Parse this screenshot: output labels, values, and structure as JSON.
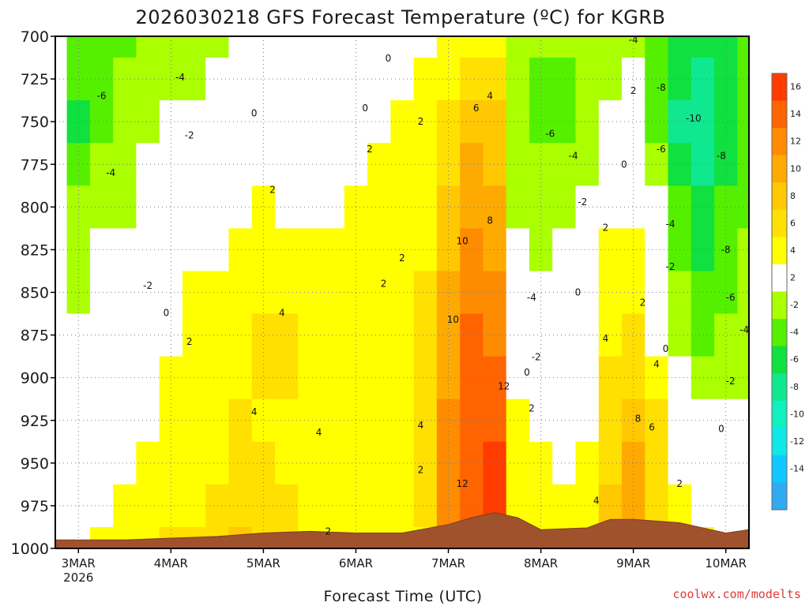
{
  "chart_data": {
    "type": "heatmap",
    "title": "2026030218 GFS Forecast Temperature (ºC) for KGRB",
    "xlabel": "Forecast Time (UTC)",
    "ylabel": "",
    "credit": "coolwx.com/modelts",
    "x_ticks": [
      {
        "label": "3MAR",
        "sub": "2026",
        "day": 3
      },
      {
        "label": "4MAR",
        "sub": "",
        "day": 4
      },
      {
        "label": "5MAR",
        "sub": "",
        "day": 5
      },
      {
        "label": "6MAR",
        "sub": "",
        "day": 6
      },
      {
        "label": "7MAR",
        "sub": "",
        "day": 7
      },
      {
        "label": "8MAR",
        "sub": "",
        "day": 8
      },
      {
        "label": "9MAR",
        "sub": "",
        "day": 9
      },
      {
        "label": "10MAR",
        "sub": "",
        "day": 10
      }
    ],
    "xlim": [
      2.75,
      10.25
    ],
    "y_ticks": [
      700,
      725,
      750,
      775,
      800,
      825,
      850,
      875,
      900,
      925,
      950,
      975,
      1000
    ],
    "ylim": [
      1000,
      700
    ],
    "colorbar": {
      "labels": [
        "16",
        "14",
        "12",
        "10",
        "8",
        "6",
        "4",
        "2",
        "-2",
        "-4",
        "-6",
        "-8",
        "-10",
        "-12",
        "-14"
      ],
      "colors": [
        "#ff3c00",
        "#ff6400",
        "#ff8c00",
        "#ffaa00",
        "#ffc800",
        "#ffe000",
        "#ffff00",
        "#ffffff",
        "#aaff00",
        "#55f000",
        "#10e040",
        "#10e890",
        "#10f0c0",
        "#10e8e8",
        "#10c8ff",
        "#30aaf0"
      ]
    },
    "temperature_field": [
      {
        "day": 3.0,
        "levels": [
          -5,
          -6,
          -7,
          -5,
          -4,
          -3,
          -3,
          -2,
          -1,
          -1,
          0,
          0,
          1
        ]
      },
      {
        "day": 3.25,
        "levels": [
          -5,
          -5,
          -5,
          -4,
          -3,
          -2,
          -2,
          -1,
          0,
          0,
          1,
          1,
          2
        ]
      },
      {
        "day": 3.5,
        "levels": [
          -5,
          -4,
          -4,
          -3,
          -3,
          -2,
          -1,
          0,
          0,
          1,
          1,
          2,
          3
        ]
      },
      {
        "day": 3.75,
        "levels": [
          -4,
          -4,
          -3,
          -2,
          -1,
          -1,
          0,
          0,
          1,
          1,
          2,
          3,
          3
        ]
      },
      {
        "day": 4.0,
        "levels": [
          -4,
          -3,
          -2,
          -1,
          0,
          0,
          1,
          1,
          2,
          2,
          3,
          3,
          4
        ]
      },
      {
        "day": 4.25,
        "levels": [
          -4,
          -3,
          -1,
          0,
          0,
          1,
          2,
          2,
          3,
          3,
          3,
          3,
          4
        ]
      },
      {
        "day": 4.5,
        "levels": [
          -3,
          -2,
          -1,
          0,
          1,
          1,
          2,
          3,
          3,
          3,
          3,
          4,
          4
        ]
      },
      {
        "day": 4.75,
        "levels": [
          -2,
          -1,
          0,
          1,
          1,
          2,
          2,
          3,
          3,
          4,
          5,
          5,
          6
        ]
      },
      {
        "day": 5.0,
        "levels": [
          -1,
          0,
          1,
          1,
          2,
          2,
          3,
          4,
          4,
          3,
          4,
          5,
          5
        ]
      },
      {
        "day": 5.25,
        "levels": [
          -1,
          0,
          0,
          1,
          1,
          2,
          3,
          4,
          4,
          3,
          3,
          4,
          4
        ]
      },
      {
        "day": 5.5,
        "levels": [
          0,
          0,
          1,
          0,
          1,
          2,
          2,
          3,
          3,
          3,
          2,
          2,
          3
        ]
      },
      {
        "day": 5.75,
        "levels": [
          0,
          -1,
          0,
          1,
          1,
          2,
          2,
          2,
          3,
          3,
          2,
          3,
          3
        ]
      },
      {
        "day": 6.0,
        "levels": [
          0,
          0,
          1,
          1,
          2,
          2,
          2,
          2,
          3,
          3,
          3,
          3,
          3
        ]
      },
      {
        "day": 6.25,
        "levels": [
          0,
          1,
          1,
          2,
          2,
          2,
          2,
          2,
          2,
          3,
          3,
          3,
          2
        ]
      },
      {
        "day": 6.5,
        "levels": [
          1,
          1,
          2,
          2,
          2,
          2,
          2,
          3,
          3,
          3,
          3,
          2,
          2
        ]
      },
      {
        "day": 6.75,
        "levels": [
          1,
          2,
          2,
          3,
          3,
          3,
          4,
          4,
          4,
          4,
          4,
          4,
          3
        ]
      },
      {
        "day": 7.0,
        "levels": [
          2,
          3,
          4,
          5,
          6,
          7,
          8,
          9,
          9,
          10,
          10,
          10,
          9
        ]
      },
      {
        "day": 7.25,
        "levels": [
          3,
          4,
          6,
          8,
          9,
          10,
          11,
          12,
          13,
          13,
          13,
          13,
          12
        ]
      },
      {
        "day": 7.5,
        "levels": [
          3,
          5,
          6,
          7,
          8,
          9,
          10,
          11,
          12,
          13,
          14,
          15,
          15
        ]
      },
      {
        "day": 7.75,
        "levels": [
          -3,
          -4,
          -4,
          -3,
          -3,
          -2,
          -1,
          0,
          1,
          2,
          2,
          2,
          2
        ]
      },
      {
        "day": 8.0,
        "levels": [
          -4,
          -5,
          -5,
          -4,
          -3,
          -3,
          -2,
          -1,
          0,
          1,
          2,
          2,
          2
        ]
      },
      {
        "day": 8.25,
        "levels": [
          -4,
          -5,
          -5,
          -4,
          -3,
          -2,
          -2,
          -1,
          0,
          1,
          1,
          2,
          2
        ]
      },
      {
        "day": 8.5,
        "levels": [
          -3,
          -4,
          -4,
          -3,
          -2,
          -1,
          -1,
          0,
          1,
          1,
          2,
          3,
          3
        ]
      },
      {
        "day": 8.75,
        "levels": [
          -3,
          -3,
          -2,
          -1,
          1,
          2,
          3,
          3,
          4,
          5,
          5,
          6,
          7
        ]
      },
      {
        "day": 9.0,
        "levels": [
          -3,
          -2,
          -1,
          0,
          1,
          2,
          3,
          4,
          5,
          7,
          8,
          8,
          8
        ]
      },
      {
        "day": 9.25,
        "levels": [
          -5,
          -6,
          -6,
          -4,
          -2,
          -1,
          0,
          1,
          3,
          4,
          5,
          5,
          5
        ]
      },
      {
        "day": 9.5,
        "levels": [
          -7,
          -8,
          -9,
          -8,
          -6,
          -5,
          -4,
          -3,
          -2,
          0,
          1,
          2,
          3
        ]
      },
      {
        "day": 9.75,
        "levels": [
          -8,
          -10,
          -10,
          -9,
          -8,
          -7,
          -6,
          -5,
          -4,
          -2,
          0,
          1,
          2
        ]
      },
      {
        "day": 10.0,
        "levels": [
          -7,
          -8,
          -8,
          -7,
          -6,
          -6,
          -5,
          -4,
          -3,
          -1,
          0,
          1,
          1
        ]
      },
      {
        "day": 10.25,
        "levels": [
          -6,
          -6,
          -6,
          -5,
          -5,
          -4,
          -4,
          -3,
          -3,
          -2,
          -1,
          0,
          0
        ]
      }
    ],
    "terrain_pressure": [
      {
        "day": 2.75,
        "p": 995
      },
      {
        "day": 3.5,
        "p": 995
      },
      {
        "day": 4.0,
        "p": 994
      },
      {
        "day": 4.5,
        "p": 993
      },
      {
        "day": 5.0,
        "p": 991
      },
      {
        "day": 5.5,
        "p": 990
      },
      {
        "day": 6.0,
        "p": 991
      },
      {
        "day": 6.5,
        "p": 991
      },
      {
        "day": 7.0,
        "p": 986
      },
      {
        "day": 7.25,
        "p": 982
      },
      {
        "day": 7.5,
        "p": 979
      },
      {
        "day": 7.75,
        "p": 982
      },
      {
        "day": 8.0,
        "p": 989
      },
      {
        "day": 8.5,
        "p": 988
      },
      {
        "day": 8.75,
        "p": 983
      },
      {
        "day": 9.0,
        "p": 983
      },
      {
        "day": 9.5,
        "p": 985
      },
      {
        "day": 10.0,
        "p": 991
      },
      {
        "day": 10.25,
        "p": 989
      }
    ],
    "contour_labels": [
      {
        "text": "-6",
        "day": 3.25,
        "p": 735
      },
      {
        "text": "-4",
        "day": 4.1,
        "p": 724
      },
      {
        "text": "0",
        "day": 4.9,
        "p": 745
      },
      {
        "text": "-2",
        "day": 4.2,
        "p": 758
      },
      {
        "text": "2",
        "day": 5.1,
        "p": 790
      },
      {
        "text": "0",
        "day": 6.35,
        "p": 713
      },
      {
        "text": "0",
        "day": 6.1,
        "p": 742
      },
      {
        "text": "2",
        "day": 6.15,
        "p": 766
      },
      {
        "text": "2",
        "day": 6.7,
        "p": 750
      },
      {
        "text": "-4",
        "day": 3.35,
        "p": 780
      },
      {
        "text": "-2",
        "day": 3.75,
        "p": 846
      },
      {
        "text": "0",
        "day": 3.95,
        "p": 862
      },
      {
        "text": "2",
        "day": 4.2,
        "p": 879
      },
      {
        "text": "4",
        "day": 5.2,
        "p": 862
      },
      {
        "text": "2",
        "day": 6.3,
        "p": 845
      },
      {
        "text": "2",
        "day": 6.5,
        "p": 830
      },
      {
        "text": "4",
        "day": 4.9,
        "p": 920
      },
      {
        "text": "4",
        "day": 5.6,
        "p": 932
      },
      {
        "text": "2",
        "day": 5.7,
        "p": 990
      },
      {
        "text": "4",
        "day": 6.7,
        "p": 928
      },
      {
        "text": "2",
        "day": 6.7,
        "p": 954
      },
      {
        "text": "10",
        "day": 7.15,
        "p": 820
      },
      {
        "text": "8",
        "day": 7.45,
        "p": 808
      },
      {
        "text": "10",
        "day": 7.05,
        "p": 866
      },
      {
        "text": "6",
        "day": 7.3,
        "p": 742
      },
      {
        "text": "4",
        "day": 7.45,
        "p": 735
      },
      {
        "text": "12",
        "day": 7.6,
        "p": 905
      },
      {
        "text": "12",
        "day": 7.15,
        "p": 962
      },
      {
        "text": "0",
        "day": 7.85,
        "p": 897
      },
      {
        "text": "2",
        "day": 7.9,
        "p": 918
      },
      {
        "text": "-2",
        "day": 7.95,
        "p": 888
      },
      {
        "text": "-4",
        "day": 7.9,
        "p": 853
      },
      {
        "text": "-6",
        "day": 8.1,
        "p": 757
      },
      {
        "text": "-4",
        "day": 8.35,
        "p": 770
      },
      {
        "text": "-2",
        "day": 8.45,
        "p": 797
      },
      {
        "text": "0",
        "day": 8.4,
        "p": 850
      },
      {
        "text": "2",
        "day": 8.7,
        "p": 812
      },
      {
        "text": "0",
        "day": 8.9,
        "p": 775
      },
      {
        "text": "4",
        "day": 8.7,
        "p": 877
      },
      {
        "text": "4",
        "day": 8.6,
        "p": 972
      },
      {
        "text": "-4",
        "day": 9.0,
        "p": 702
      },
      {
        "text": "-8",
        "day": 9.3,
        "p": 730
      },
      {
        "text": "2",
        "day": 9.0,
        "p": 732
      },
      {
        "text": "-6",
        "day": 9.3,
        "p": 766
      },
      {
        "text": "-10",
        "day": 9.65,
        "p": 748
      },
      {
        "text": "-8",
        "day": 9.95,
        "p": 770
      },
      {
        "text": "-4",
        "day": 9.4,
        "p": 810
      },
      {
        "text": "-2",
        "day": 9.4,
        "p": 835
      },
      {
        "text": "2",
        "day": 9.1,
        "p": 856
      },
      {
        "text": "0",
        "day": 9.35,
        "p": 883
      },
      {
        "text": "4",
        "day": 9.25,
        "p": 892
      },
      {
        "text": "6",
        "day": 9.2,
        "p": 929
      },
      {
        "text": "8",
        "day": 9.05,
        "p": 924
      },
      {
        "text": "2",
        "day": 9.5,
        "p": 962
      },
      {
        "text": "-8",
        "day": 10.0,
        "p": 825
      },
      {
        "text": "-6",
        "day": 10.05,
        "p": 853
      },
      {
        "text": "-4",
        "day": 10.2,
        "p": 872
      },
      {
        "text": "-2",
        "day": 10.05,
        "p": 902
      },
      {
        "text": "0",
        "day": 9.95,
        "p": 930
      }
    ]
  }
}
